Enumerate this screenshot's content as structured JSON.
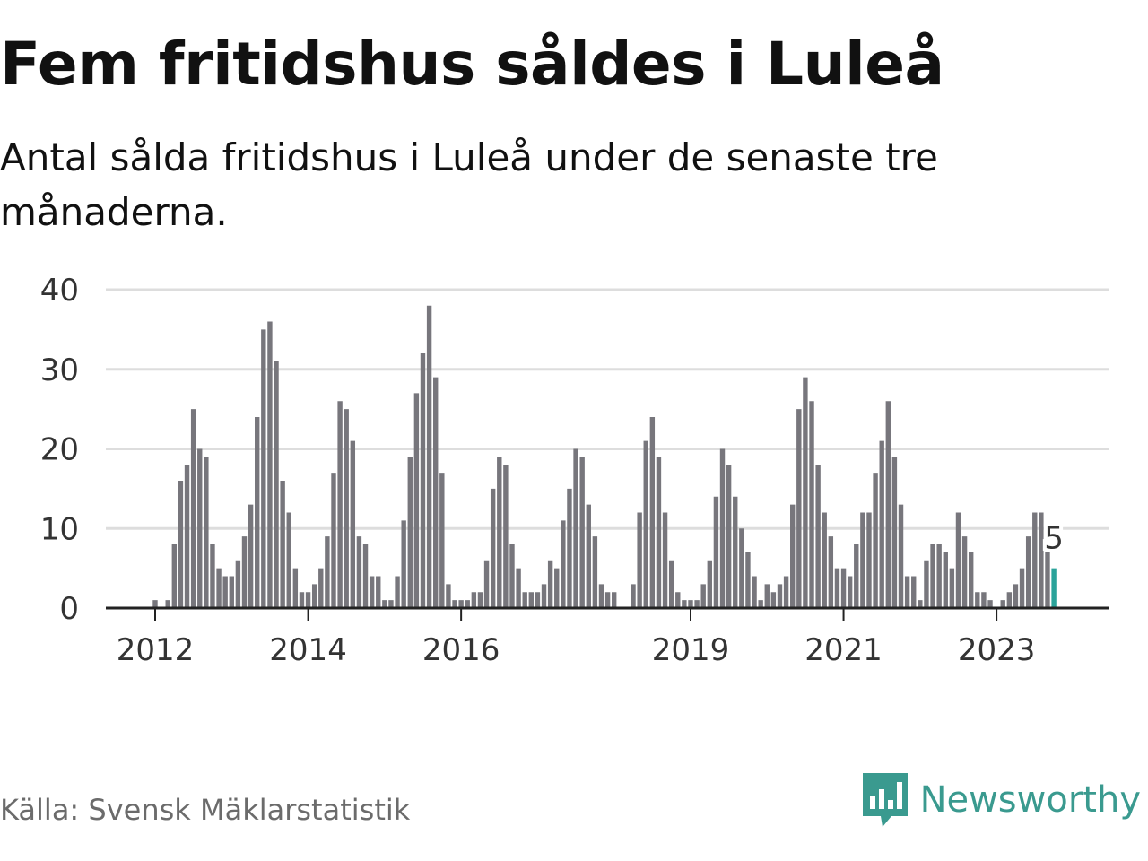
{
  "title": "Fem fritidshus såldes i Luleå",
  "subtitle": "Antal sålda fritidshus i Luleå under de senaste tre månaderna.",
  "source": "Källa: Svensk Mäklarstatistik",
  "brand": {
    "name": "Newsworthy"
  },
  "colors": {
    "bar": "#77767c",
    "highlight": "#2aa39a",
    "grid": "#dddddd",
    "axis": "#222222",
    "brand": "#3a9a8f"
  },
  "chart_data": {
    "type": "bar",
    "title": "Fem fritidshus såldes i Luleå",
    "xlabel": "",
    "ylabel": "",
    "ylim": [
      0,
      40
    ],
    "yticks": [
      0,
      10,
      20,
      30,
      40
    ],
    "xticks": [
      {
        "label": "2012",
        "index": 0
      },
      {
        "label": "2014",
        "index": 24
      },
      {
        "label": "2016",
        "index": 48
      },
      {
        "label": "2019",
        "index": 84
      },
      {
        "label": "2021",
        "index": 108
      },
      {
        "label": "2023",
        "index": 132
      }
    ],
    "start_month": "2012-01",
    "values": [
      1,
      0,
      1,
      8,
      16,
      18,
      25,
      20,
      19,
      8,
      5,
      4,
      4,
      6,
      9,
      13,
      24,
      35,
      36,
      31,
      16,
      12,
      5,
      2,
      2,
      3,
      5,
      9,
      17,
      26,
      25,
      21,
      9,
      8,
      4,
      4,
      1,
      1,
      4,
      11,
      19,
      27,
      32,
      38,
      29,
      17,
      3,
      1,
      1,
      1,
      2,
      2,
      6,
      15,
      19,
      18,
      8,
      5,
      2,
      2,
      2,
      3,
      6,
      5,
      11,
      15,
      20,
      19,
      13,
      9,
      3,
      2,
      2,
      0,
      0,
      3,
      12,
      21,
      24,
      19,
      12,
      6,
      2,
      1,
      1,
      1,
      3,
      6,
      14,
      20,
      18,
      14,
      10,
      7,
      4,
      1,
      3,
      2,
      3,
      4,
      13,
      25,
      29,
      26,
      18,
      12,
      9,
      5,
      5,
      4,
      8,
      12,
      12,
      17,
      21,
      26,
      19,
      13,
      4,
      4,
      1,
      6,
      8,
      8,
      7,
      5,
      12,
      9,
      7,
      2,
      2,
      1,
      0,
      1,
      2,
      3,
      5,
      9,
      12,
      12,
      7,
      5
    ],
    "highlight_last": true,
    "annotation": {
      "label": "5",
      "index": 141
    }
  }
}
